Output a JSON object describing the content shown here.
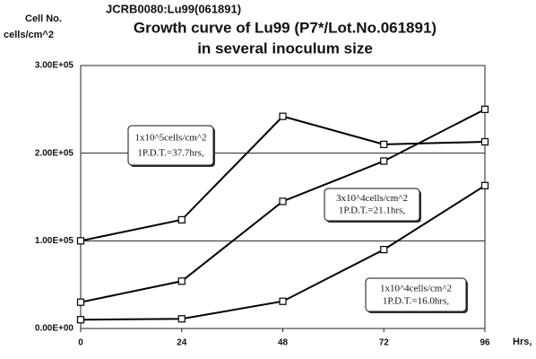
{
  "chart_data": {
    "type": "line",
    "header": "JCRB0080:Lu99(061891)",
    "title": "Growth curve of Lu99 (P7*/Lot.No.061891)",
    "subtitle": "in several inoculum size",
    "y_label": [
      "Cell No.",
      "cells/cm^2"
    ],
    "x_label": "Hrs,",
    "x": [
      0,
      24,
      48,
      72,
      96
    ],
    "xlim": [
      0,
      96
    ],
    "xticks": [
      0,
      24,
      48,
      72,
      96
    ],
    "ylim": [
      0,
      300000
    ],
    "yticks": [
      {
        "value": 0,
        "label": "0.00E+00"
      },
      {
        "value": 100000,
        "label": "1.00E+05"
      },
      {
        "value": 200000,
        "label": "2.00E+05"
      },
      {
        "value": 300000,
        "label": "3.00E+05"
      }
    ],
    "grid": true,
    "series": [
      {
        "name": "1x10^5cells/cm^2",
        "note": "1P.D.T.=37.7hrs,",
        "color": "#000000",
        "values": [
          100000,
          124000,
          242000,
          210000,
          213000
        ]
      },
      {
        "name": "3x10^4cells/cm^2",
        "note": "1P.D.T.=21.1hrs,",
        "color": "#000000",
        "values": [
          30000,
          54000,
          145000,
          191000,
          250000
        ]
      },
      {
        "name": "1x10^4cells/cm^2",
        "note": "1P.D.T.=16.0hrs,",
        "color": "#000000",
        "values": [
          10000,
          11000,
          31000,
          90000,
          163000
        ]
      }
    ]
  }
}
